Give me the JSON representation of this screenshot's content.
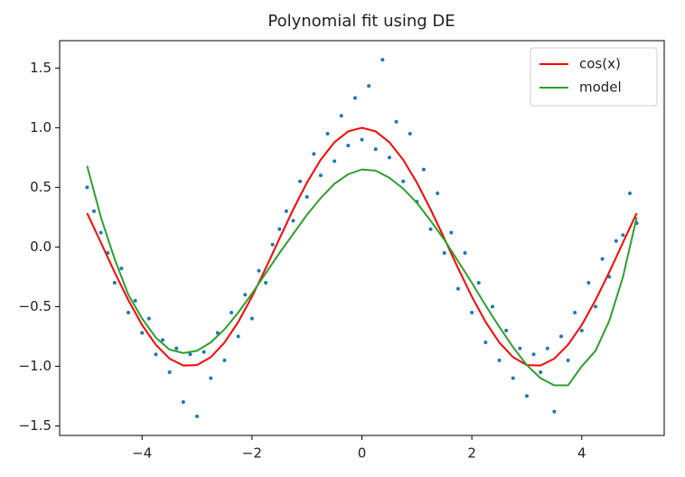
{
  "chart_data": {
    "type": "scatter",
    "title": "Polynomial fit using DE",
    "points": {
      "color": "#1f77b4",
      "x": [
        -5.0,
        -4.875,
        -4.75,
        -4.625,
        -4.5,
        -4.375,
        -4.25,
        -4.125,
        -4.0,
        -3.875,
        -3.75,
        -3.625,
        -3.5,
        -3.375,
        -3.25,
        -3.125,
        -3.0,
        -2.875,
        -2.75,
        -2.625,
        -2.5,
        -2.375,
        -2.25,
        -2.125,
        -2.0,
        -1.875,
        -1.75,
        -1.625,
        -1.5,
        -1.375,
        -1.25,
        -1.125,
        -1.0,
        -0.875,
        -0.75,
        -0.625,
        -0.5,
        -0.375,
        -0.25,
        -0.125,
        0.0,
        0.125,
        0.25,
        0.375,
        0.5,
        0.625,
        0.75,
        0.875,
        1.0,
        1.125,
        1.25,
        1.375,
        1.5,
        1.625,
        1.75,
        1.875,
        2.0,
        2.125,
        2.25,
        2.375,
        2.5,
        2.625,
        2.75,
        2.875,
        3.0,
        3.125,
        3.25,
        3.375,
        3.5,
        3.625,
        3.75,
        3.875,
        4.0,
        4.125,
        4.25,
        4.375,
        4.5,
        4.625,
        4.75,
        4.875,
        5.0
      ],
      "values": [
        0.5,
        0.3,
        0.12,
        -0.05,
        -0.3,
        -0.18,
        -0.55,
        -0.45,
        -0.72,
        -0.6,
        -0.9,
        -0.78,
        -1.05,
        -0.85,
        -1.3,
        -0.9,
        -1.42,
        -0.88,
        -1.1,
        -0.72,
        -0.95,
        -0.55,
        -0.75,
        -0.4,
        -0.6,
        -0.2,
        -0.3,
        0.02,
        0.15,
        0.3,
        0.22,
        0.55,
        0.42,
        0.78,
        0.6,
        0.95,
        0.72,
        1.1,
        0.85,
        1.25,
        0.9,
        1.35,
        0.82,
        1.57,
        0.75,
        1.05,
        0.55,
        0.95,
        0.38,
        0.65,
        0.15,
        0.45,
        -0.05,
        0.12,
        -0.35,
        -0.05,
        -0.55,
        -0.3,
        -0.8,
        -0.5,
        -0.95,
        -0.7,
        -1.1,
        -0.85,
        -1.25,
        -0.9,
        -1.05,
        -0.85,
        -1.38,
        -0.75,
        -0.95,
        -0.55,
        -0.7,
        -0.3,
        -0.5,
        -0.1,
        -0.25,
        0.05,
        0.1,
        0.45,
        0.2
      ]
    },
    "series": [
      {
        "name": "cos(x)",
        "color": "#ff0000",
        "x": [
          -5,
          -4.75,
          -4.5,
          -4.25,
          -4,
          -3.75,
          -3.5,
          -3.25,
          -3,
          -2.75,
          -2.5,
          -2.25,
          -2,
          -1.75,
          -1.5,
          -1.25,
          -1,
          -0.75,
          -0.5,
          -0.25,
          0,
          0.25,
          0.5,
          0.75,
          1,
          1.25,
          1.5,
          1.75,
          2,
          2.25,
          2.5,
          2.75,
          3,
          3.25,
          3.5,
          3.75,
          4,
          4.25,
          4.5,
          4.75,
          5
        ],
        "values": [
          0.284,
          0.038,
          -0.211,
          -0.446,
          -0.654,
          -0.82,
          -0.936,
          -0.994,
          -0.99,
          -0.924,
          -0.801,
          -0.628,
          -0.416,
          -0.178,
          0.071,
          0.315,
          0.54,
          0.732,
          0.878,
          0.969,
          1,
          0.969,
          0.878,
          0.732,
          0.54,
          0.315,
          0.071,
          -0.178,
          -0.416,
          -0.628,
          -0.801,
          -0.924,
          -0.99,
          -0.994,
          -0.936,
          -0.82,
          -0.654,
          -0.446,
          -0.211,
          0.038,
          0.284
        ]
      },
      {
        "name": "model",
        "color": "#2ca02c",
        "x": [
          -5,
          -4.75,
          -4.5,
          -4.25,
          -4,
          -3.75,
          -3.5,
          -3.25,
          -3,
          -2.75,
          -2.5,
          -2.25,
          -2,
          -1.75,
          -1.5,
          -1.25,
          -1,
          -0.75,
          -0.5,
          -0.25,
          0,
          0.25,
          0.5,
          0.75,
          1,
          1.25,
          1.5,
          1.75,
          2,
          2.25,
          2.5,
          2.75,
          3,
          3.25,
          3.5,
          3.75,
          4,
          4.25,
          4.5,
          4.75,
          5
        ],
        "values": [
          0.68,
          0.25,
          -0.1,
          -0.4,
          -0.6,
          -0.76,
          -0.86,
          -0.89,
          -0.87,
          -0.8,
          -0.69,
          -0.55,
          -0.39,
          -0.22,
          -0.05,
          0.11,
          0.27,
          0.41,
          0.53,
          0.61,
          0.65,
          0.64,
          0.58,
          0.49,
          0.37,
          0.22,
          0.06,
          -0.12,
          -0.3,
          -0.49,
          -0.67,
          -0.84,
          -0.99,
          -1.1,
          -1.16,
          -1.16,
          -1.0,
          -0.87,
          -0.62,
          -0.25,
          0.25
        ]
      }
    ],
    "xlim": [
      -5.5,
      5.5
    ],
    "xticks": [
      {
        "value": -4,
        "label": "−4"
      },
      {
        "value": -2,
        "label": "−2"
      },
      0,
      2,
      4
    ],
    "ylim": [
      -1.58,
      1.73
    ],
    "yticks": [
      {
        "value": -1.5,
        "label": "−1.5"
      },
      {
        "value": -1.0,
        "label": "−1.0"
      },
      {
        "value": -0.5,
        "label": "−0.5"
      },
      {
        "value": 0,
        "label": "0.0"
      },
      0.5,
      {
        "value": 1.0,
        "label": "1.0"
      },
      1.5
    ],
    "legend": "upper right"
  }
}
